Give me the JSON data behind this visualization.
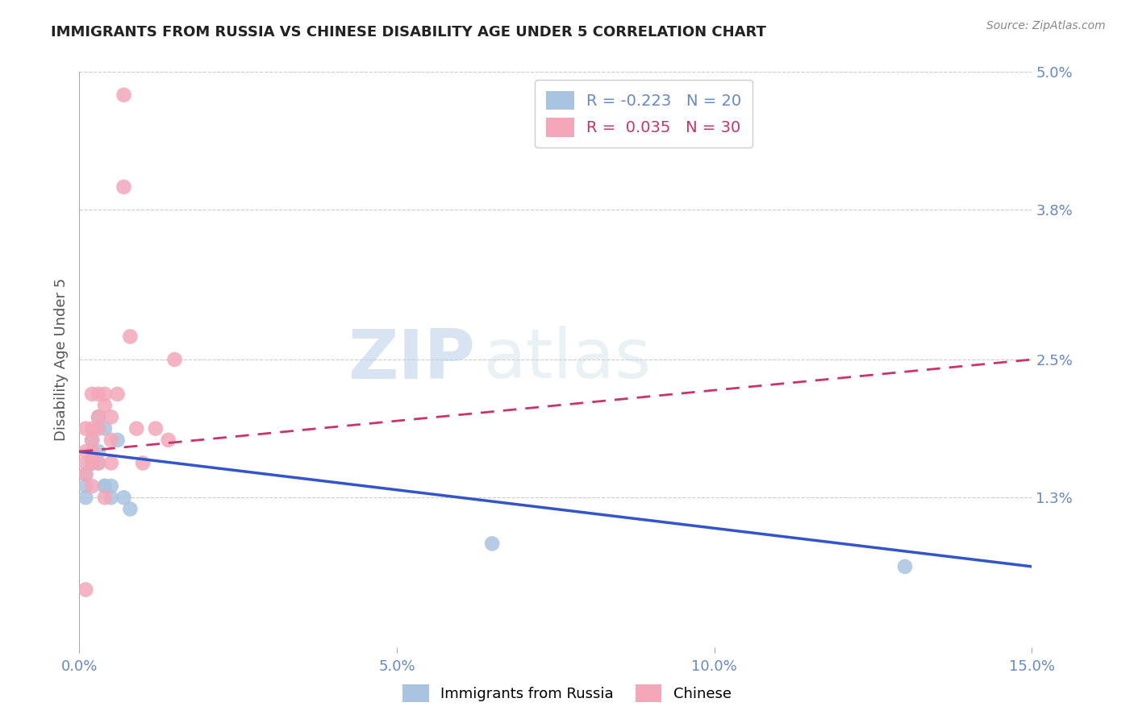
{
  "title": "IMMIGRANTS FROM RUSSIA VS CHINESE DISABILITY AGE UNDER 5 CORRELATION CHART",
  "source": "Source: ZipAtlas.com",
  "ylabel": "Disability Age Under 5",
  "xlim": [
    0.0,
    0.15
  ],
  "ylim": [
    0.0,
    0.05
  ],
  "xticks": [
    0.0,
    0.05,
    0.1,
    0.15
  ],
  "xtick_labels": [
    "0.0%",
    "5.0%",
    "10.0%",
    "15.0%"
  ],
  "ytick_labels_right": [
    "1.3%",
    "2.5%",
    "3.8%",
    "5.0%"
  ],
  "yticks_right": [
    0.013,
    0.025,
    0.038,
    0.05
  ],
  "grid_yticks": [
    0.013,
    0.025,
    0.038,
    0.05
  ],
  "watermark_zip": "ZIP",
  "watermark_atlas": "atlas",
  "russia_color": "#a8c4e0",
  "chinese_color": "#f4a7b9",
  "russia_R": "-0.223",
  "russia_N": 20,
  "chinese_R": "0.035",
  "chinese_N": 30,
  "russia_scatter_x": [
    0.001,
    0.001,
    0.001,
    0.002,
    0.002,
    0.002,
    0.002,
    0.003,
    0.003,
    0.003,
    0.004,
    0.004,
    0.004,
    0.005,
    0.005,
    0.006,
    0.007,
    0.008,
    0.065,
    0.13
  ],
  "russia_scatter_y": [
    0.013,
    0.014,
    0.015,
    0.016,
    0.017,
    0.018,
    0.016,
    0.017,
    0.016,
    0.02,
    0.019,
    0.014,
    0.014,
    0.013,
    0.014,
    0.018,
    0.013,
    0.012,
    0.009,
    0.007
  ],
  "chinese_scatter_x": [
    0.001,
    0.001,
    0.001,
    0.001,
    0.001,
    0.002,
    0.002,
    0.002,
    0.002,
    0.002,
    0.002,
    0.003,
    0.003,
    0.003,
    0.003,
    0.004,
    0.004,
    0.004,
    0.005,
    0.005,
    0.005,
    0.006,
    0.007,
    0.007,
    0.008,
    0.009,
    0.01,
    0.012,
    0.014,
    0.015
  ],
  "chinese_scatter_y": [
    0.016,
    0.019,
    0.017,
    0.015,
    0.005,
    0.018,
    0.019,
    0.017,
    0.016,
    0.022,
    0.014,
    0.019,
    0.022,
    0.02,
    0.016,
    0.022,
    0.021,
    0.013,
    0.018,
    0.02,
    0.016,
    0.022,
    0.04,
    0.048,
    0.027,
    0.019,
    0.016,
    0.019,
    0.018,
    0.025
  ],
  "background_color": "#ffffff",
  "title_color": "#222222",
  "axis_label_color": "#6688cc",
  "grid_color": "#cccccc",
  "russia_line_color": "#3355cc",
  "chinese_line_color": "#cc3366",
  "russia_line_start_y": 0.017,
  "russia_line_end_y": 0.007,
  "chinese_line_start_y": 0.017,
  "chinese_line_end_y": 0.025
}
